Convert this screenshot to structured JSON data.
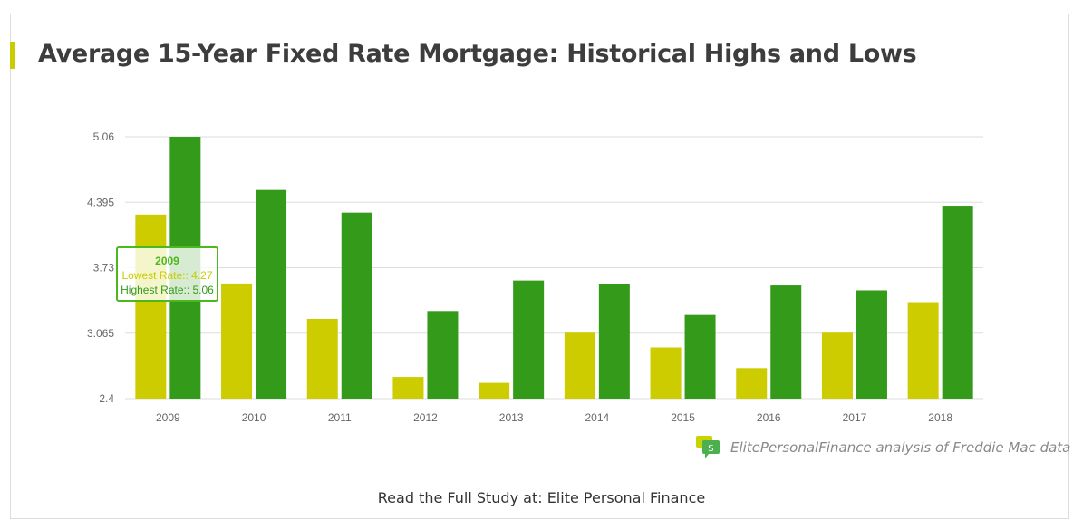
{
  "title": "Average 15-Year Fixed Rate Mortgage: Historical Highs and Lows",
  "chart_data": {
    "type": "bar",
    "title": "Average 15-Year Fixed Rate Mortgage: Historical Highs and Lows",
    "categories": [
      "2009",
      "2010",
      "2011",
      "2012",
      "2013",
      "2014",
      "2015",
      "2016",
      "2017",
      "2018"
    ],
    "series": [
      {
        "name": "Lowest Rate:",
        "color": "#cccc00",
        "values": [
          4.27,
          3.57,
          3.21,
          2.62,
          2.56,
          3.07,
          2.92,
          2.71,
          3.07,
          3.38
        ]
      },
      {
        "name": "Highest Rate:",
        "color": "#339a1a",
        "values": [
          5.06,
          4.52,
          4.29,
          3.29,
          3.6,
          3.56,
          3.25,
          3.55,
          3.5,
          4.36
        ]
      }
    ],
    "yticks": [
      "2.4",
      "3.065",
      "3.73",
      "4.395",
      "5.06"
    ],
    "ylim": [
      2.4,
      5.06
    ],
    "grid": true
  },
  "tooltip": {
    "year": "2009",
    "low": "Lowest Rate:: 4.27",
    "high": "Highest Rate:: 5.06"
  },
  "source": "ElitePersonalFinance analysis of Freddie Mac data",
  "footer": "Read the Full Study at: Elite Personal Finance"
}
